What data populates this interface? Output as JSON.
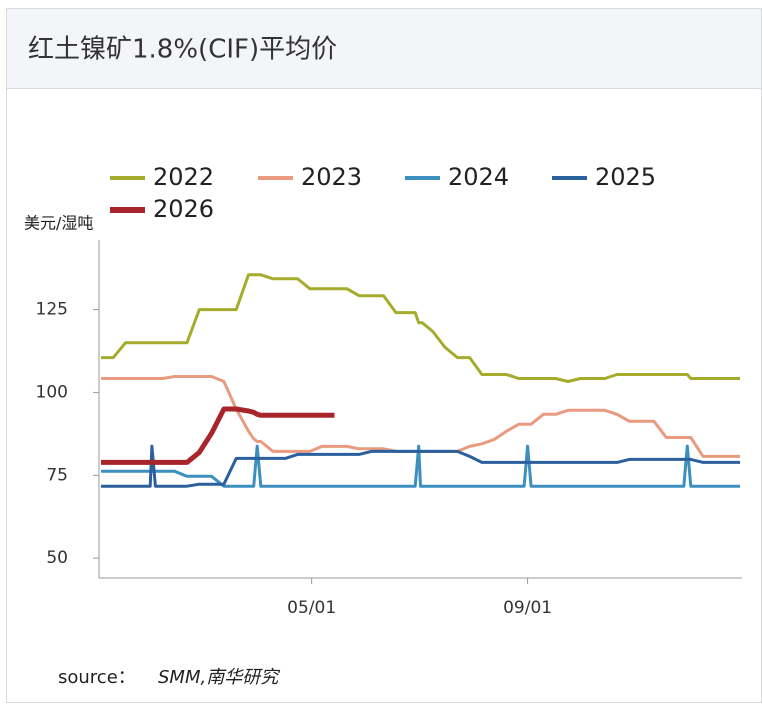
{
  "chart_data": {
    "type": "line",
    "title": "红土镍矿1.8%(CIF)平均价",
    "y_label": "美元/湿吨",
    "source_label": "source：",
    "source": "SMM,南华研究",
    "x": [
      1,
      8,
      15,
      22,
      28,
      29,
      30,
      32,
      36,
      43,
      50,
      57,
      64,
      71,
      78,
      85,
      88,
      90,
      92,
      99,
      106,
      113,
      120,
      127,
      134,
      141,
      148,
      155,
      162,
      169,
      176,
      180,
      182,
      183,
      184,
      190,
      197,
      204,
      211,
      218,
      225,
      232,
      239,
      242,
      244,
      246,
      253,
      260,
      267,
      274,
      281,
      288,
      295,
      302,
      309,
      316,
      323,
      330,
      333,
      335,
      337,
      344,
      351,
      358,
      365
    ],
    "xlim": [
      1,
      365
    ],
    "xticks": [
      {
        "value": 121,
        "label": "05/01"
      },
      {
        "value": 244,
        "label": "09/01"
      }
    ],
    "ylim": [
      44,
      146
    ],
    "yticks": [
      50,
      75,
      100,
      125
    ],
    "series": [
      {
        "name": "2022",
        "color": "#a5ac2b",
        "values": [
          110.5,
          110.5,
          115,
          115,
          115,
          115,
          115,
          115,
          115,
          115,
          115,
          125,
          125,
          125,
          125,
          135.5,
          135.5,
          135.5,
          135.5,
          134.3,
          134.3,
          134.3,
          131.3,
          131.3,
          131.3,
          131.3,
          129.2,
          129.2,
          129.2,
          124.1,
          124.1,
          124.1,
          121,
          121,
          121,
          118.4,
          113.6,
          110.5,
          110.5,
          105.4,
          105.4,
          105.4,
          104.2,
          104.2,
          104.2,
          104.2,
          104.2,
          104.2,
          103.3,
          104.2,
          104.2,
          104.2,
          105.4,
          105.4,
          105.4,
          105.4,
          105.4,
          105.4,
          105.4,
          105.4,
          104.2,
          104.2,
          104.2,
          104.2,
          104.2
        ]
      },
      {
        "name": "2023",
        "color": "#e99a7f",
        "values": [
          104.2,
          104.2,
          104.2,
          104.2,
          104.2,
          104.2,
          104.2,
          104.2,
          104.2,
          104.8,
          104.8,
          104.8,
          104.8,
          103.3,
          95,
          88.3,
          86,
          85.2,
          85.2,
          82.2,
          82.2,
          82.2,
          82.2,
          83.7,
          83.7,
          83.7,
          83,
          83,
          83,
          82.2,
          82.2,
          82.2,
          82.2,
          82.2,
          82.2,
          82.2,
          82.2,
          82.2,
          83.7,
          84.5,
          85.8,
          88.3,
          90.4,
          90.4,
          90.4,
          90.4,
          93.4,
          93.4,
          94.6,
          94.6,
          94.6,
          94.6,
          93.4,
          91.3,
          91.3,
          91.3,
          86.4,
          86.4,
          86.4,
          86.4,
          86.4,
          80.7,
          80.7,
          80.7,
          80.7
        ]
      },
      {
        "name": "2024",
        "color": "#3c8fc0",
        "values": [
          76.2,
          76.2,
          76.2,
          76.2,
          76.2,
          76.2,
          76.2,
          76.2,
          76.2,
          76.2,
          74.7,
          74.7,
          74.7,
          71.7,
          71.7,
          71.7,
          71.7,
          83.8,
          71.7,
          71.7,
          71.7,
          71.7,
          71.7,
          71.7,
          71.7,
          71.7,
          71.7,
          71.7,
          71.7,
          71.7,
          71.7,
          71.7,
          83.8,
          71.7,
          71.7,
          71.7,
          71.7,
          71.7,
          71.7,
          71.7,
          71.7,
          71.7,
          71.7,
          71.7,
          83.8,
          71.7,
          71.7,
          71.7,
          71.7,
          71.7,
          71.7,
          71.7,
          71.7,
          71.7,
          71.7,
          71.7,
          71.7,
          71.7,
          71.7,
          83.8,
          71.7,
          71.7,
          71.7,
          71.7,
          71.7
        ]
      },
      {
        "name": "2025",
        "color": "#2c5f9e",
        "values": [
          71.7,
          71.7,
          71.7,
          71.7,
          71.7,
          71.7,
          83.8,
          71.7,
          71.7,
          71.7,
          71.7,
          72.3,
          72.3,
          72.3,
          80.1,
          80.1,
          80.1,
          80.1,
          80.1,
          80.1,
          80.1,
          81.3,
          81.3,
          81.3,
          81.3,
          81.3,
          81.3,
          82.2,
          82.2,
          82.2,
          82.2,
          82.2,
          82.2,
          82.2,
          82.2,
          82.2,
          82.2,
          82.2,
          80.7,
          78.9,
          78.9,
          78.9,
          78.9,
          78.9,
          78.9,
          78.9,
          78.9,
          78.9,
          78.9,
          78.9,
          78.9,
          78.9,
          78.9,
          79.8,
          79.8,
          79.8,
          79.8,
          79.8,
          79.8,
          79.8,
          79.8,
          78.9,
          78.9,
          78.9,
          78.9
        ]
      },
      {
        "name": "2026",
        "color": "#a8262b",
        "values": [
          78.9,
          78.9,
          78.9,
          78.9,
          78.9,
          78.9,
          78.9,
          78.9,
          78.9,
          78.9,
          78.9,
          81.9,
          87.7,
          95,
          95,
          94.4,
          94,
          93.4,
          93.1,
          93.1,
          93.1,
          93.1,
          93.1,
          93.1,
          93.1,
          null,
          null,
          null,
          null,
          null,
          null,
          null,
          null,
          null,
          null,
          null,
          null,
          null,
          null,
          null,
          null,
          null,
          null,
          null,
          null,
          null,
          null,
          null,
          null,
          null,
          null,
          null,
          null,
          null,
          null,
          null,
          null,
          null,
          null,
          null,
          null,
          null,
          null,
          null,
          null
        ]
      }
    ]
  }
}
